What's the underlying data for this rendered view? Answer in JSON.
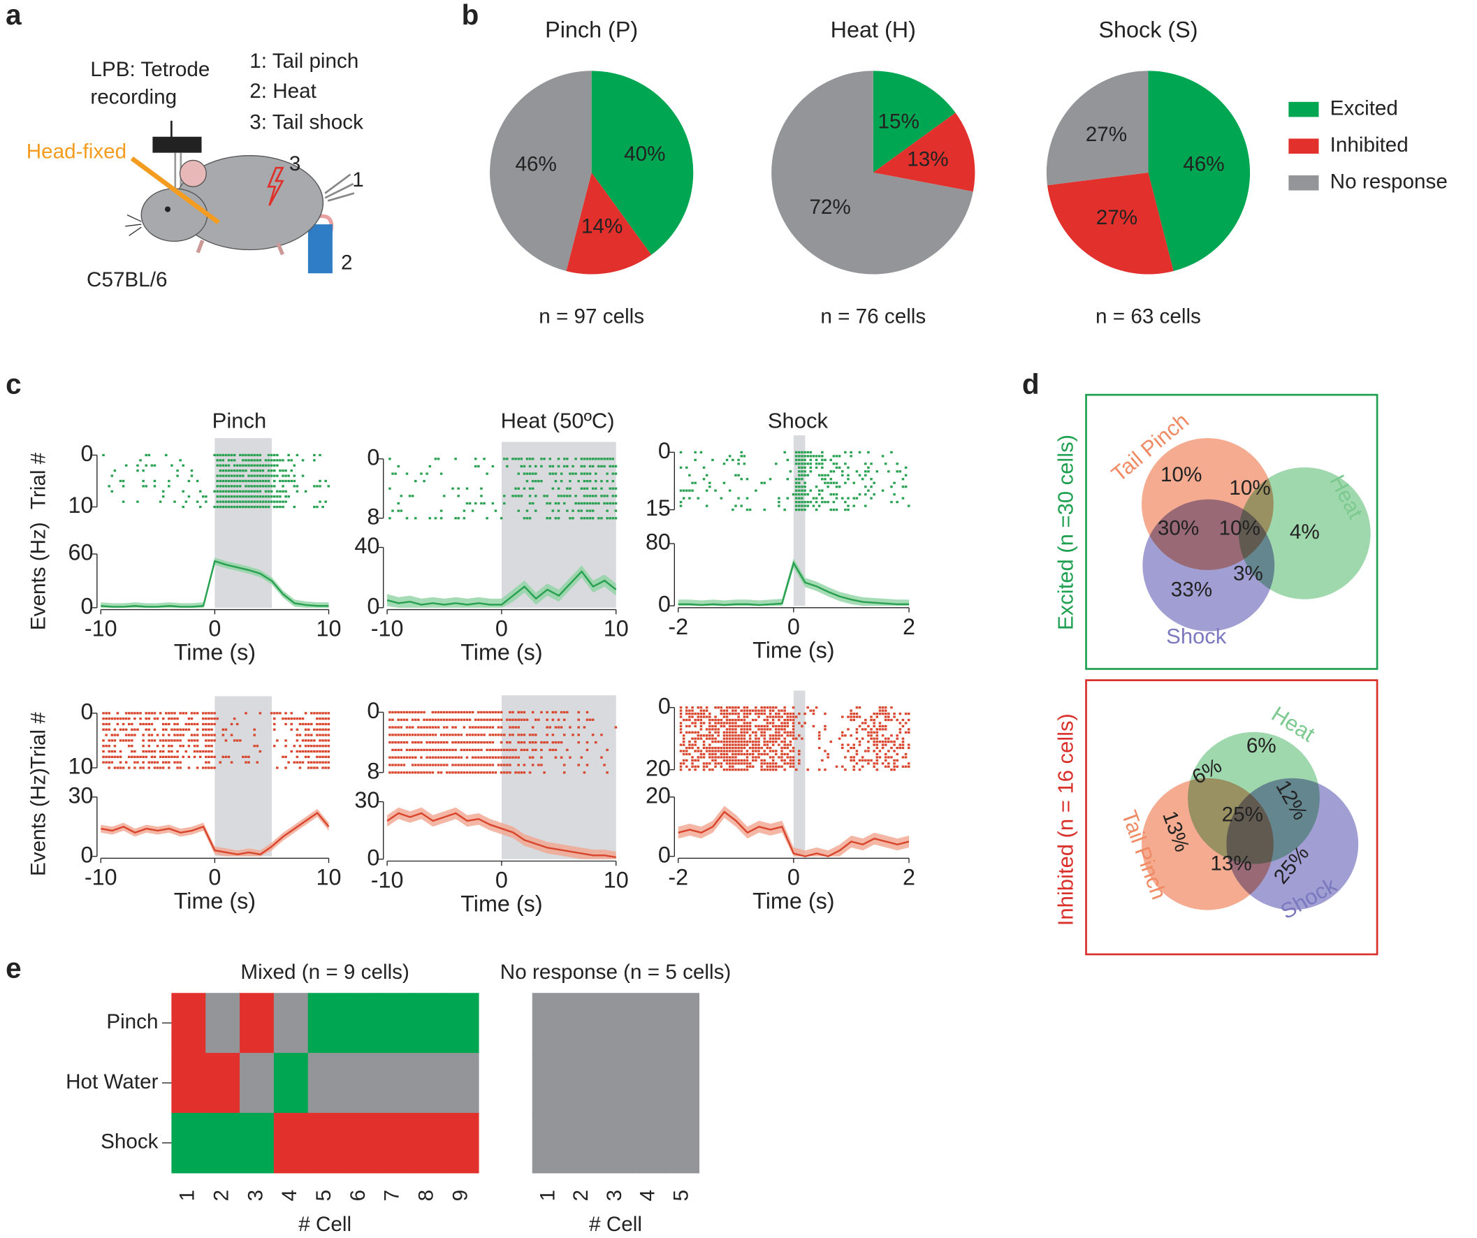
{
  "panel_labels": [
    "a",
    "b",
    "c",
    "d",
    "e"
  ],
  "setup": {
    "recording": [
      "LPB: Tetrode",
      "recording"
    ],
    "stimuli": [
      "1: Tail pinch",
      "2: Heat",
      "3: Tail shock"
    ],
    "head_fixed": "Head-fixed",
    "strain": "C57BL/6",
    "markers": [
      "3",
      "1",
      "2"
    ]
  },
  "chart_data": [
    {
      "type": "pie",
      "title": "Pinch (P)",
      "categories": [
        "Excited",
        "Inhibited",
        "No response"
      ],
      "colors": [
        "#00a651",
        "#e2312d",
        "#939598"
      ],
      "values": [
        40,
        14,
        46
      ],
      "value_labels": [
        "40%",
        "14%",
        "46%"
      ],
      "caption": "n = 97 cells"
    },
    {
      "type": "pie",
      "title": "Heat (H)",
      "categories": [
        "Excited",
        "Inhibited",
        "No response"
      ],
      "colors": [
        "#00a651",
        "#e2312d",
        "#939598"
      ],
      "values": [
        15,
        13,
        72
      ],
      "value_labels": [
        "15%",
        "13%",
        "72%"
      ],
      "caption": "n = 76 cells"
    },
    {
      "type": "pie",
      "title": "Shock (S)",
      "categories": [
        "Excited",
        "Inhibited",
        "No response"
      ],
      "colors": [
        "#00a651",
        "#e2312d",
        "#939598"
      ],
      "values": [
        46,
        27,
        27
      ],
      "value_labels": [
        "46%",
        "27%",
        "27%"
      ],
      "caption": "n = 63 cells",
      "legend": "right"
    },
    {
      "type": "line",
      "title": "Pinch",
      "x": [
        -10,
        -9,
        -8,
        -7,
        -6,
        -5,
        -4,
        -3,
        -2,
        -1,
        0,
        1,
        2,
        3,
        4,
        5,
        6,
        7,
        8,
        9,
        10
      ],
      "values": [
        2,
        1,
        1,
        2,
        1,
        1,
        2,
        1,
        1,
        2,
        52,
        48,
        45,
        42,
        38,
        30,
        15,
        5,
        3,
        2,
        2
      ],
      "error": 4,
      "color": "#27a04f",
      "band_color": "#8fd3a2",
      "xlim": [
        -10,
        10
      ],
      "xticks": [
        -10,
        0,
        10
      ],
      "ylim": [
        0,
        60
      ],
      "yticks": [
        0,
        60
      ],
      "raster_ylim": [
        0,
        10
      ],
      "raster_yticks": [
        0,
        10
      ],
      "stimulus": [
        0,
        5
      ],
      "xlabel": "Time (s)",
      "ylabel": "Events (Hz)",
      "raster_ylabel": "Trial #"
    },
    {
      "type": "line",
      "title": "Heat (50ºC)",
      "x": [
        -10,
        -9,
        -8,
        -7,
        -6,
        -5,
        -4,
        -3,
        -2,
        -1,
        0,
        1,
        2,
        3,
        4,
        5,
        6,
        7,
        8,
        9,
        10
      ],
      "values": [
        5,
        3,
        4,
        2,
        3,
        2,
        3,
        2,
        3,
        2,
        2,
        8,
        14,
        6,
        12,
        8,
        16,
        24,
        14,
        18,
        12
      ],
      "error": 4,
      "color": "#27a04f",
      "band_color": "#8fd3a2",
      "xlim": [
        -10,
        10
      ],
      "xticks": [
        -10,
        0,
        10
      ],
      "ylim": [
        0,
        40
      ],
      "yticks": [
        0,
        40
      ],
      "raster_ylim": [
        0,
        8
      ],
      "raster_yticks": [
        0,
        8
      ],
      "stimulus": [
        0,
        10
      ],
      "xlabel": "Time (s)"
    },
    {
      "type": "line",
      "title": "Shock",
      "x": [
        -2,
        -1.8,
        -1.6,
        -1.4,
        -1.2,
        -1,
        -0.8,
        -0.6,
        -0.4,
        -0.2,
        0,
        0.2,
        0.4,
        0.6,
        0.8,
        1,
        1.2,
        1.4,
        1.6,
        1.8,
        2
      ],
      "values": [
        2,
        2,
        1,
        2,
        1,
        2,
        2,
        1,
        2,
        3,
        55,
        30,
        25,
        18,
        12,
        8,
        5,
        4,
        3,
        2,
        2
      ],
      "error": 6,
      "color": "#27a04f",
      "band_color": "#8fd3a2",
      "xlim": [
        -2,
        2
      ],
      "xticks": [
        -2,
        0,
        2
      ],
      "ylim": [
        0,
        80
      ],
      "yticks": [
        0,
        80
      ],
      "raster_ylim": [
        0,
        15
      ],
      "raster_yticks": [
        0,
        15
      ],
      "stimulus": [
        0,
        0.2
      ],
      "xlabel": "Time (s)"
    },
    {
      "type": "line",
      "x": [
        -10,
        -9,
        -8,
        -7,
        -6,
        -5,
        -4,
        -3,
        -2,
        -1,
        0,
        1,
        2,
        3,
        4,
        5,
        6,
        7,
        8,
        9,
        10
      ],
      "values": [
        14,
        13,
        15,
        12,
        14,
        13,
        14,
        12,
        13,
        15,
        3,
        2,
        1,
        2,
        1,
        5,
        10,
        14,
        18,
        22,
        15
      ],
      "error": 2,
      "color": "#d8452c",
      "band_color": "#f2a58e",
      "xlim": [
        -10,
        10
      ],
      "xticks": [
        -10,
        0,
        10
      ],
      "ylim": [
        0,
        30
      ],
      "yticks": [
        0,
        30
      ],
      "raster_ylim": [
        0,
        10
      ],
      "raster_yticks": [
        0,
        10
      ],
      "stimulus": [
        0,
        5
      ],
      "xlabel": "Time (s)",
      "ylabel": "Events (Hz)",
      "raster_ylabel": "Trial #"
    },
    {
      "type": "line",
      "x": [
        -10,
        -9,
        -8,
        -7,
        -6,
        -5,
        -4,
        -3,
        -2,
        -1,
        0,
        1,
        2,
        3,
        4,
        5,
        6,
        7,
        8,
        9,
        10
      ],
      "values": [
        20,
        24,
        22,
        24,
        20,
        22,
        24,
        20,
        21,
        18,
        16,
        14,
        10,
        8,
        6,
        5,
        4,
        3,
        2,
        2,
        1
      ],
      "error": 3,
      "color": "#d8452c",
      "band_color": "#f2a58e",
      "xlim": [
        -10,
        10
      ],
      "xticks": [
        -10,
        0,
        10
      ],
      "ylim": [
        0,
        30
      ],
      "yticks": [
        0,
        30
      ],
      "raster_ylim": [
        0,
        8
      ],
      "raster_yticks": [
        0,
        8
      ],
      "stimulus": [
        0,
        10
      ],
      "xlabel": "Time (s)"
    },
    {
      "type": "line",
      "x": [
        -2,
        -1.8,
        -1.6,
        -1.4,
        -1.2,
        -1,
        -0.8,
        -0.6,
        -0.4,
        -0.2,
        0,
        0.2,
        0.4,
        0.6,
        0.8,
        1,
        1.2,
        1.4,
        1.6,
        1.8,
        2
      ],
      "values": [
        8,
        9,
        8,
        10,
        15,
        12,
        8,
        10,
        9,
        10,
        1,
        0,
        1,
        0,
        2,
        5,
        4,
        6,
        5,
        4,
        5
      ],
      "error": 2,
      "color": "#d8452c",
      "band_color": "#f2a58e",
      "xlim": [
        -2,
        2
      ],
      "xticks": [
        -2,
        0,
        2
      ],
      "ylim": [
        0,
        20
      ],
      "yticks": [
        0,
        20
      ],
      "raster_ylim": [
        0,
        20
      ],
      "raster_yticks": [
        0,
        20
      ],
      "stimulus": [
        0,
        0.2
      ],
      "xlabel": "Time (s)"
    },
    {
      "type": "venn",
      "title": "Excited (n =30 cells)",
      "title_color": "#1ea050",
      "sets": [
        "Tail Pinch",
        "Heat",
        "Shock"
      ],
      "colors": [
        "#f08a64",
        "#7cc98f",
        "#7b78c0"
      ],
      "values": [
        10,
        10,
        4,
        30,
        10,
        3,
        33
      ],
      "value_labels": [
        "10%",
        "10%",
        "4%",
        "30%",
        "10%",
        "3%",
        "33%"
      ]
    },
    {
      "type": "venn",
      "title": "Inhibited (n = 16 cells)",
      "title_color": "#d9302a",
      "sets": [
        "Tail Pinch",
        "Heat",
        "Shock"
      ],
      "colors": [
        "#f08a64",
        "#7cc98f",
        "#7b78c0"
      ],
      "values": [
        6,
        6,
        12,
        13,
        25,
        13,
        25
      ],
      "value_labels": [
        "6%",
        "6%",
        "12%",
        "13%",
        "25%",
        "13%",
        "25%"
      ]
    },
    {
      "type": "heatmap",
      "title": "Mixed (n = 9 cells)",
      "rows": [
        "Pinch",
        "Hot Water",
        "Shock"
      ],
      "columns": [
        1,
        2,
        3,
        4,
        5,
        6,
        7,
        8,
        9
      ],
      "cells": [
        [
          "#e2312d",
          "#939598",
          "#e2312d",
          "#939598",
          "#00a651",
          "#00a651",
          "#00a651",
          "#00a651",
          "#00a651"
        ],
        [
          "#e2312d",
          "#e2312d",
          "#939598",
          "#00a651",
          "#939598",
          "#939598",
          "#939598",
          "#939598",
          "#939598"
        ],
        [
          "#00a651",
          "#00a651",
          "#00a651",
          "#e2312d",
          "#e2312d",
          "#e2312d",
          "#e2312d",
          "#e2312d",
          "#e2312d"
        ]
      ],
      "xlabel": "# Cell"
    },
    {
      "type": "heatmap",
      "title": "No response (n = 5 cells)",
      "columns": [
        1,
        2,
        3,
        4,
        5
      ],
      "cells": [
        [
          "#939598",
          "#939598",
          "#939598",
          "#939598",
          "#939598"
        ],
        [
          "#939598",
          "#939598",
          "#939598",
          "#939598",
          "#939598"
        ],
        [
          "#939598",
          "#939598",
          "#939598",
          "#939598",
          "#939598"
        ]
      ],
      "xlabel": "# Cell"
    }
  ]
}
